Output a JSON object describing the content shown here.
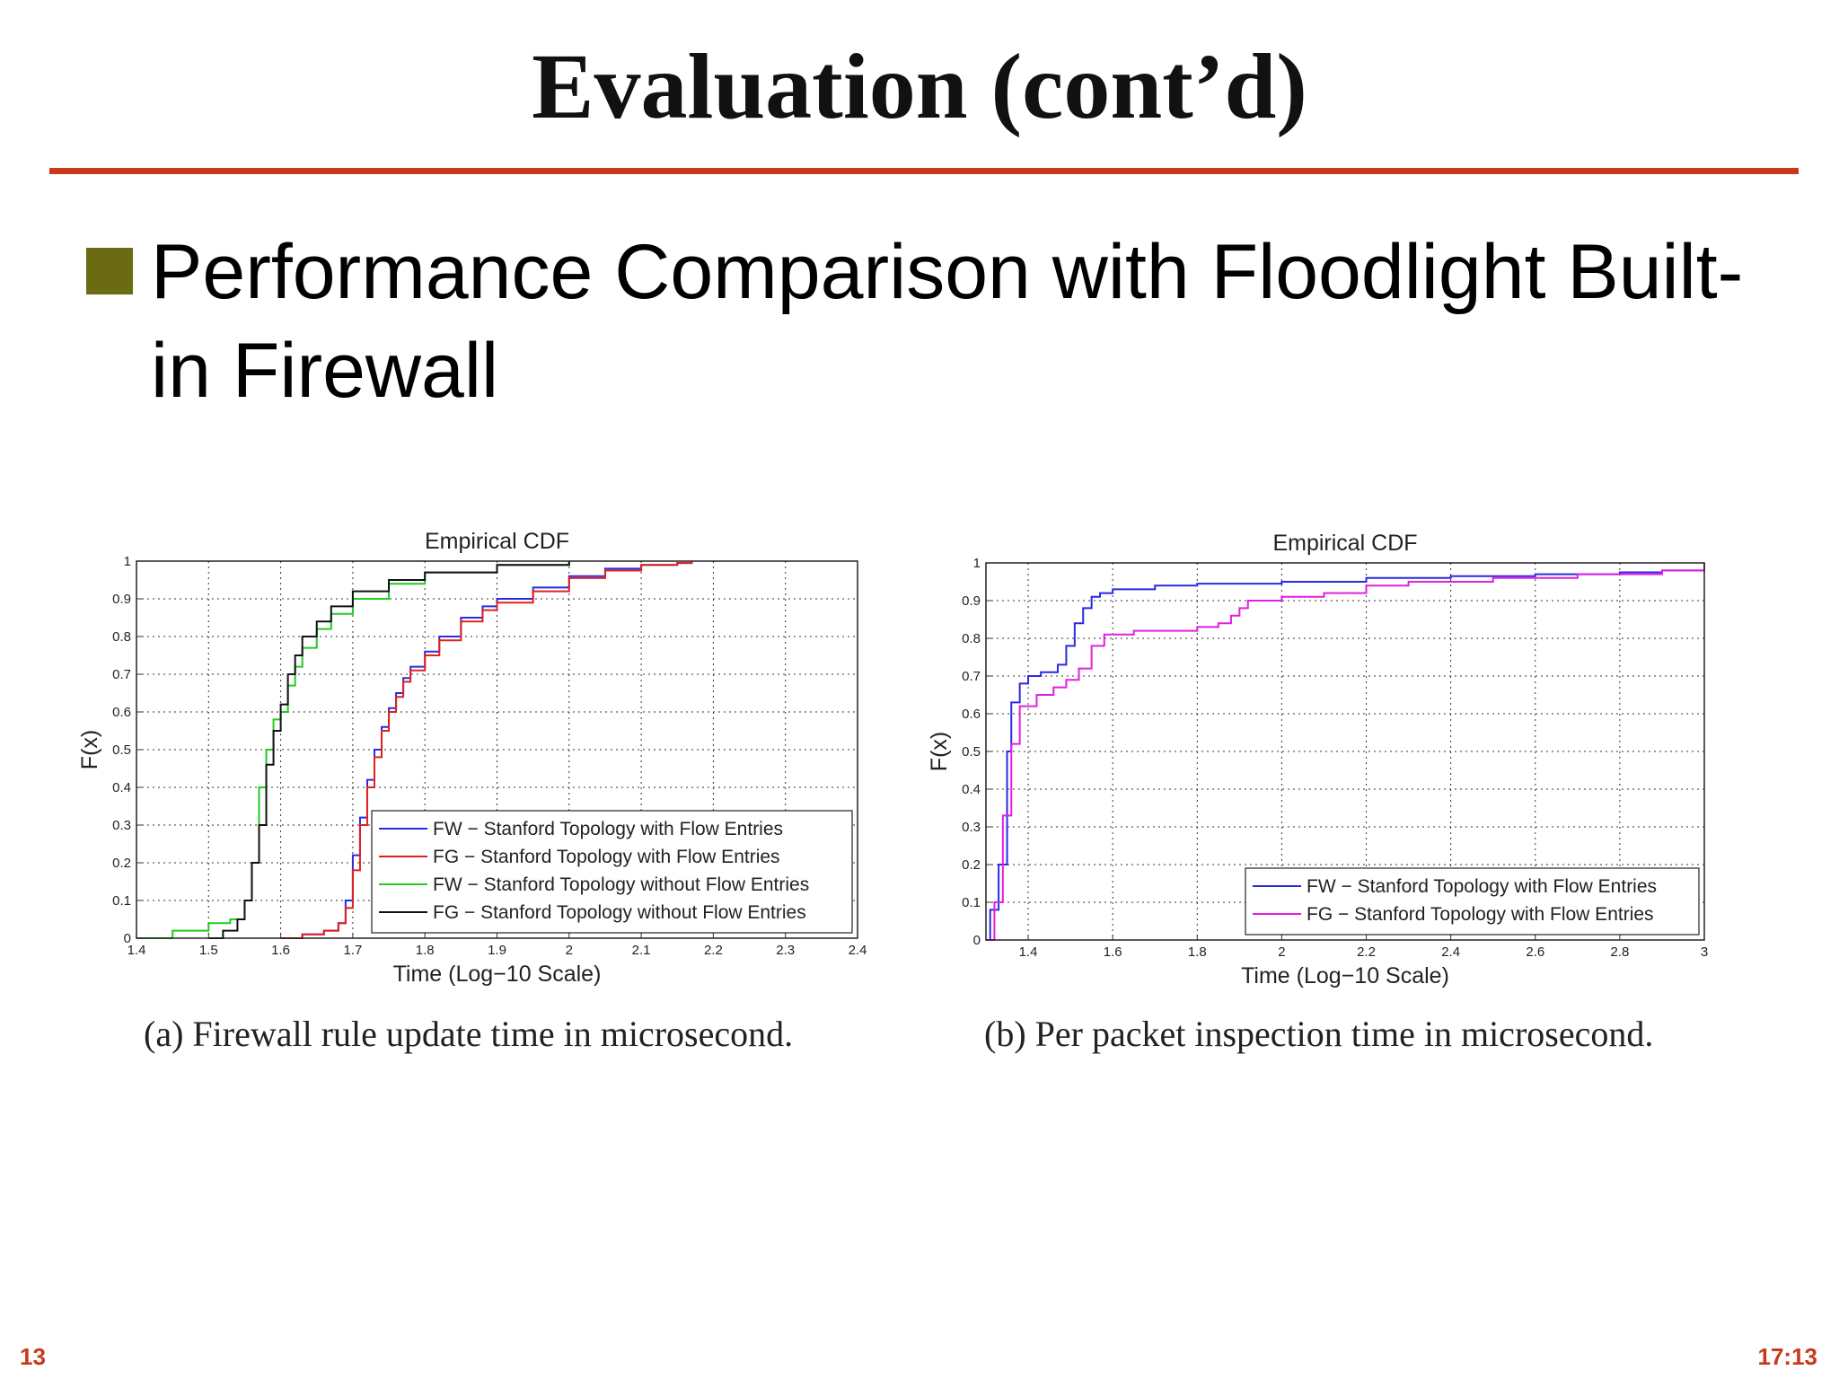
{
  "slide": {
    "title": "Evaluation (cont’d)",
    "bullet": "Performance Comparison with Floodlight Built-in Firewall",
    "page_number": "13",
    "time": "17:13",
    "accent_color": "#c8391a",
    "bullet_color": "#6b6b14"
  },
  "captions": {
    "a": "(a)  Firewall rule update time in microsecond.",
    "b": "(b)  Per packet inspection time in microsecond."
  },
  "chart_data": [
    {
      "type": "line",
      "title": "Empirical CDF",
      "xlabel": "Time (Log−10 Scale)",
      "ylabel": "F(x)",
      "xlim": [
        1.4,
        2.4
      ],
      "ylim": [
        0,
        1
      ],
      "xticks": [
        "1.4",
        "1.5",
        "1.6",
        "1.7",
        "1.8",
        "1.9",
        "2",
        "2.1",
        "2.2",
        "2.3",
        "2.4"
      ],
      "yticks": [
        "0",
        "0.1",
        "0.2",
        "0.3",
        "0.4",
        "0.5",
        "0.6",
        "0.7",
        "0.8",
        "0.9",
        "1"
      ],
      "grid": true,
      "legend_position": "bottom-right",
      "series": [
        {
          "name": "FW − Stanford Topology with Flow Entries",
          "color": "#2a2ae0",
          "x": [
            1.6,
            1.63,
            1.66,
            1.68,
            1.69,
            1.7,
            1.71,
            1.72,
            1.73,
            1.74,
            1.75,
            1.76,
            1.77,
            1.78,
            1.8,
            1.82,
            1.85,
            1.88,
            1.9,
            1.95,
            2.0,
            2.05,
            2.1,
            2.15,
            2.17
          ],
          "y": [
            0.0,
            0.01,
            0.02,
            0.04,
            0.1,
            0.22,
            0.32,
            0.42,
            0.5,
            0.56,
            0.61,
            0.65,
            0.69,
            0.72,
            0.76,
            0.8,
            0.85,
            0.88,
            0.9,
            0.93,
            0.96,
            0.98,
            0.99,
            0.995,
            1.0
          ]
        },
        {
          "name": "FG − Stanford Topology with Flow Entries",
          "color": "#e02020",
          "x": [
            1.6,
            1.63,
            1.66,
            1.68,
            1.69,
            1.7,
            1.71,
            1.72,
            1.73,
            1.74,
            1.75,
            1.76,
            1.77,
            1.78,
            1.8,
            1.82,
            1.85,
            1.88,
            1.9,
            1.95,
            2.0,
            2.05,
            2.1,
            2.15,
            2.17
          ],
          "y": [
            0.0,
            0.01,
            0.02,
            0.04,
            0.08,
            0.18,
            0.3,
            0.4,
            0.48,
            0.55,
            0.6,
            0.64,
            0.68,
            0.71,
            0.75,
            0.79,
            0.84,
            0.87,
            0.89,
            0.92,
            0.955,
            0.975,
            0.99,
            0.995,
            1.0
          ]
        },
        {
          "name": "FW − Stanford Topology without Flow Entries",
          "color": "#22cc22",
          "x": [
            1.4,
            1.45,
            1.5,
            1.53,
            1.55,
            1.56,
            1.57,
            1.58,
            1.59,
            1.6,
            1.61,
            1.62,
            1.63,
            1.65,
            1.67,
            1.7,
            1.75,
            1.8,
            1.9,
            2.0
          ],
          "y": [
            0.0,
            0.02,
            0.04,
            0.05,
            0.1,
            0.2,
            0.4,
            0.5,
            0.58,
            0.6,
            0.67,
            0.72,
            0.77,
            0.82,
            0.86,
            0.9,
            0.94,
            0.97,
            0.99,
            1.0
          ]
        },
        {
          "name": "FG − Stanford Topology without Flow Entries",
          "color": "#111111",
          "x": [
            1.5,
            1.52,
            1.54,
            1.55,
            1.56,
            1.57,
            1.58,
            1.59,
            1.6,
            1.61,
            1.62,
            1.63,
            1.65,
            1.67,
            1.7,
            1.75,
            1.8,
            1.9,
            2.0
          ],
          "y": [
            0.0,
            0.02,
            0.05,
            0.1,
            0.2,
            0.3,
            0.46,
            0.55,
            0.62,
            0.7,
            0.75,
            0.8,
            0.84,
            0.88,
            0.92,
            0.95,
            0.97,
            0.99,
            1.0
          ]
        }
      ]
    },
    {
      "type": "line",
      "title": "Empirical CDF",
      "xlabel": "Time (Log−10 Scale)",
      "ylabel": "F(x)",
      "xlim": [
        1.3,
        3.0
      ],
      "ylim": [
        0,
        1
      ],
      "xticks": [
        "1.4",
        "1.6",
        "1.8",
        "2",
        "2.2",
        "2.4",
        "2.6",
        "2.8",
        "3"
      ],
      "yticks": [
        "0",
        "0.1",
        "0.2",
        "0.3",
        "0.4",
        "0.5",
        "0.6",
        "0.7",
        "0.8",
        "0.9",
        "1"
      ],
      "grid": true,
      "legend_position": "bottom-right",
      "series": [
        {
          "name": "FW − Stanford Topology with Flow Entries",
          "color": "#2a2ae0",
          "x": [
            1.3,
            1.31,
            1.33,
            1.35,
            1.36,
            1.38,
            1.4,
            1.43,
            1.47,
            1.49,
            1.51,
            1.53,
            1.55,
            1.57,
            1.6,
            1.7,
            1.8,
            2.0,
            2.2,
            2.4,
            2.6,
            2.8,
            2.9,
            3.0
          ],
          "y": [
            0.0,
            0.08,
            0.2,
            0.5,
            0.63,
            0.68,
            0.7,
            0.71,
            0.73,
            0.78,
            0.84,
            0.88,
            0.91,
            0.92,
            0.93,
            0.94,
            0.945,
            0.95,
            0.96,
            0.965,
            0.97,
            0.975,
            0.98,
            1.0
          ]
        },
        {
          "name": "FG − Stanford Topology with Flow Entries",
          "color": "#e020e0",
          "x": [
            1.3,
            1.32,
            1.34,
            1.36,
            1.38,
            1.42,
            1.46,
            1.49,
            1.52,
            1.55,
            1.58,
            1.65,
            1.7,
            1.75,
            1.8,
            1.85,
            1.88,
            1.9,
            1.92,
            2.0,
            2.1,
            2.2,
            2.3,
            2.5,
            2.7,
            2.9,
            3.0
          ],
          "y": [
            0.0,
            0.1,
            0.33,
            0.52,
            0.62,
            0.65,
            0.67,
            0.69,
            0.72,
            0.78,
            0.81,
            0.82,
            0.82,
            0.82,
            0.83,
            0.84,
            0.86,
            0.88,
            0.9,
            0.91,
            0.92,
            0.94,
            0.95,
            0.96,
            0.97,
            0.98,
            1.0
          ]
        }
      ]
    }
  ]
}
